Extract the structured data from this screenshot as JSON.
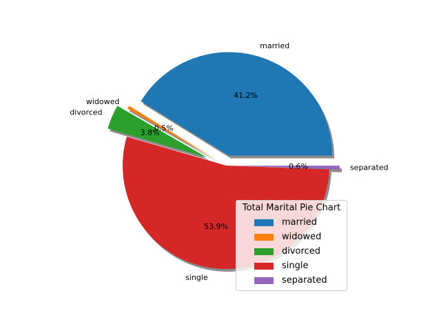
{
  "chart_data": {
    "type": "pie",
    "legend_title": "Total Marital Pie Chart",
    "legend_placement": "lower-right",
    "shadow": true,
    "start_angle_deg": 0,
    "direction": "counterclockwise",
    "slices": [
      {
        "label": "married",
        "percent": 41.2,
        "pct_label": "41.2%",
        "explode": 0.1,
        "color": "#1f77b4"
      },
      {
        "label": "widowed",
        "percent": 0.5,
        "pct_label": "0.5%",
        "explode": 0.1,
        "color": "#ff7f0e"
      },
      {
        "label": "divorced",
        "percent": 3.8,
        "pct_label": "3.8%",
        "explode": 0.2,
        "color": "#2ca02c"
      },
      {
        "label": "single",
        "percent": 53.9,
        "pct_label": "53.9%",
        "explode": 0.0,
        "color": "#d62728"
      },
      {
        "label": "separated",
        "percent": 0.6,
        "pct_label": "0.6%",
        "explode": 0.1,
        "color": "#9467bd"
      }
    ]
  }
}
